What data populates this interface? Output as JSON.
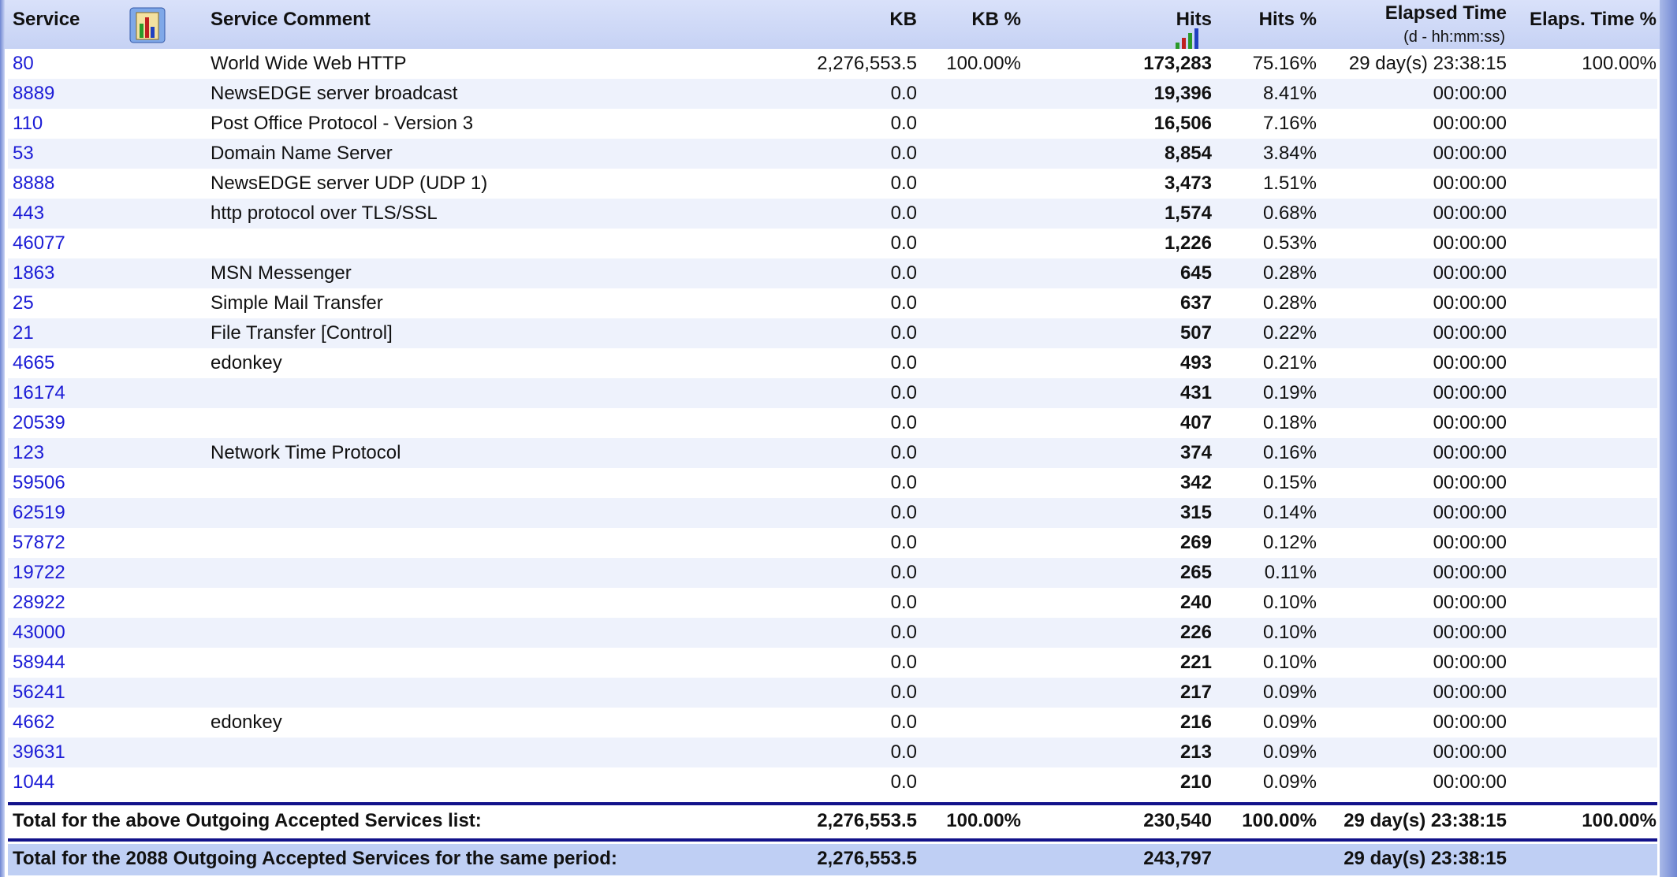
{
  "header": {
    "columns": [
      "Service",
      "Service Comment",
      "KB",
      "KB %",
      "Hits",
      "Hits %",
      "Elapsed Time",
      "Elaps. Time %"
    ],
    "elapsed_note": "(d - hh:mm:ss)"
  },
  "table": {
    "rows": [
      {
        "service": "80",
        "comment": "World Wide Web HTTP",
        "kb": "2,276,553.5",
        "kb_pct": "100.00%",
        "hits": "173,283",
        "hits_pct": "75.16%",
        "elapsed": "29 day(s) 23:38:15",
        "elapsed_pct": "100.00%"
      },
      {
        "service": "8889",
        "comment": "NewsEDGE server broadcast",
        "kb": "0.0",
        "hits": "19,396",
        "hits_pct": "8.41%",
        "elapsed": "00:00:00"
      },
      {
        "service": "110",
        "comment": "Post Office Protocol - Version 3",
        "kb": "0.0",
        "hits": "16,506",
        "hits_pct": "7.16%",
        "elapsed": "00:00:00"
      },
      {
        "service": "53",
        "comment": "Domain Name Server",
        "kb": "0.0",
        "hits": "8,854",
        "hits_pct": "3.84%",
        "elapsed": "00:00:00"
      },
      {
        "service": "8888",
        "comment": "NewsEDGE server UDP (UDP 1)",
        "kb": "0.0",
        "hits": "3,473",
        "hits_pct": "1.51%",
        "elapsed": "00:00:00"
      },
      {
        "service": "443",
        "comment": "http protocol over TLS/SSL",
        "kb": "0.0",
        "hits": "1,574",
        "hits_pct": "0.68%",
        "elapsed": "00:00:00"
      },
      {
        "service": "46077",
        "kb": "0.0",
        "hits": "1,226",
        "hits_pct": "0.53%",
        "elapsed": "00:00:00"
      },
      {
        "service": "1863",
        "comment": "MSN Messenger",
        "kb": "0.0",
        "hits": "645",
        "hits_pct": "0.28%",
        "elapsed": "00:00:00"
      },
      {
        "service": "25",
        "comment": "Simple Mail Transfer",
        "kb": "0.0",
        "hits": "637",
        "hits_pct": "0.28%",
        "elapsed": "00:00:00"
      },
      {
        "service": "21",
        "comment": "File Transfer [Control]",
        "kb": "0.0",
        "hits": "507",
        "hits_pct": "0.22%",
        "elapsed": "00:00:00"
      },
      {
        "service": "4665",
        "comment": "edonkey",
        "kb": "0.0",
        "hits": "493",
        "hits_pct": "0.21%",
        "elapsed": "00:00:00"
      },
      {
        "service": "16174",
        "kb": "0.0",
        "hits": "431",
        "hits_pct": "0.19%",
        "elapsed": "00:00:00"
      },
      {
        "service": "20539",
        "kb": "0.0",
        "hits": "407",
        "hits_pct": "0.18%",
        "elapsed": "00:00:00"
      },
      {
        "service": "123",
        "comment": "Network Time Protocol",
        "kb": "0.0",
        "hits": "374",
        "hits_pct": "0.16%",
        "elapsed": "00:00:00"
      },
      {
        "service": "59506",
        "kb": "0.0",
        "hits": "342",
        "hits_pct": "0.15%",
        "elapsed": "00:00:00"
      },
      {
        "service": "62519",
        "kb": "0.0",
        "hits": "315",
        "hits_pct": "0.14%",
        "elapsed": "00:00:00"
      },
      {
        "service": "57872",
        "kb": "0.0",
        "hits": "269",
        "hits_pct": "0.12%",
        "elapsed": "00:00:00"
      },
      {
        "service": "19722",
        "kb": "0.0",
        "hits": "265",
        "hits_pct": "0.11%",
        "elapsed": "00:00:00"
      },
      {
        "service": "28922",
        "kb": "0.0",
        "hits": "240",
        "hits_pct": "0.10%",
        "elapsed": "00:00:00"
      },
      {
        "service": "43000",
        "kb": "0.0",
        "hits": "226",
        "hits_pct": "0.10%",
        "elapsed": "00:00:00"
      },
      {
        "service": "58944",
        "kb": "0.0",
        "hits": "221",
        "hits_pct": "0.10%",
        "elapsed": "00:00:00"
      },
      {
        "service": "56241",
        "kb": "0.0",
        "hits": "217",
        "hits_pct": "0.09%",
        "elapsed": "00:00:00"
      },
      {
        "service": "4662",
        "comment": "edonkey",
        "kb": "0.0",
        "hits": "216",
        "hits_pct": "0.09%",
        "elapsed": "00:00:00"
      },
      {
        "service": "39631",
        "kb": "0.0",
        "hits": "213",
        "hits_pct": "0.09%",
        "elapsed": "00:00:00"
      },
      {
        "service": "1044",
        "kb": "0.0",
        "hits": "210",
        "hits_pct": "0.09%",
        "elapsed": "00:00:00"
      }
    ]
  },
  "totals": [
    {
      "label": "Total for the above Outgoing Accepted Services list:",
      "kb": "2,276,553.5",
      "kb_pct": "100.00%",
      "hits": "230,540",
      "hits_pct": "100.00%",
      "elapsed": "29 day(s) 23:38:15",
      "elapsed_pct": "100.00%"
    },
    {
      "label": "Total for the 2088 Outgoing Accepted Services for the same period:",
      "kb": "2,276,553.5",
      "hits": "243,797",
      "elapsed": "29 day(s) 23:38:15"
    }
  ]
}
